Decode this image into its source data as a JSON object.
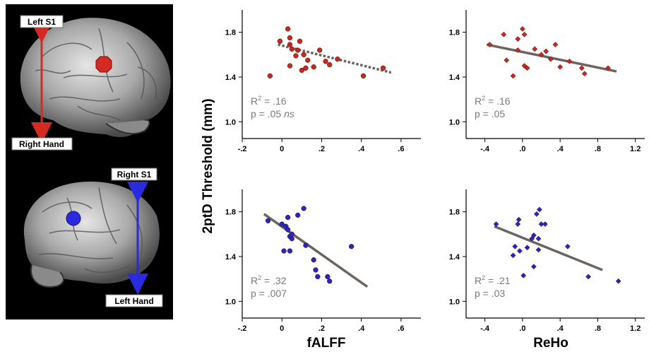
{
  "brain_panel": {
    "left": {
      "top_label": "Left S1",
      "bottom_label": "Right Hand",
      "marker_color": "#d42a22",
      "arrow_color": "#d42a22"
    },
    "right": {
      "top_label": "Right S1",
      "bottom_label": "Left Hand",
      "marker_color": "#2a2ae0",
      "arrow_color": "#2a2ae0"
    }
  },
  "y_axis_title": "2ptD Threshold (mm)",
  "column_titles": {
    "falff": "fALFF",
    "reho": "ReHo"
  },
  "chart_data": [
    {
      "id": "falff-red",
      "type": "scatter",
      "row": 0,
      "col": 0,
      "marker": "circle",
      "color": "#c8281e",
      "fit_style": "dotted",
      "xlim": [
        -0.2,
        0.7
      ],
      "ylim": [
        0.85,
        2.0
      ],
      "xticks": [
        -0.2,
        0,
        0.2,
        0.4,
        0.6
      ],
      "xtick_labels": [
        "-.2",
        "0",
        ".2",
        ".4",
        ".6"
      ],
      "yticks": [
        1.0,
        1.4,
        1.8
      ],
      "ytick_labels": [
        "1.0",
        "1.4",
        "1.8"
      ],
      "points": [
        [
          -0.06,
          1.41
        ],
        [
          -0.01,
          1.72
        ],
        [
          0.03,
          1.83
        ],
        [
          0.04,
          1.75
        ],
        [
          0.04,
          1.69
        ],
        [
          0.05,
          1.65
        ],
        [
          0.04,
          1.5
        ],
        [
          0.07,
          1.59
        ],
        [
          0.08,
          1.64
        ],
        [
          0.09,
          1.72
        ],
        [
          0.1,
          1.46
        ],
        [
          0.11,
          1.6
        ],
        [
          0.12,
          1.48
        ],
        [
          0.13,
          1.55
        ],
        [
          0.16,
          1.49
        ],
        [
          0.19,
          1.64
        ],
        [
          0.22,
          1.54
        ],
        [
          0.24,
          1.51
        ],
        [
          0.28,
          1.56
        ],
        [
          0.41,
          1.41
        ],
        [
          0.51,
          1.48
        ]
      ],
      "fit": {
        "x": [
          -0.02,
          0.55
        ],
        "y": [
          1.69,
          1.44
        ]
      },
      "stats": {
        "r2_label": "R",
        "r2_sup": "2",
        "r2_value": " = .16",
        "p_label": "p  = .05 ",
        "p_extra": "ns"
      }
    },
    {
      "id": "reho-red",
      "type": "scatter",
      "row": 0,
      "col": 1,
      "marker": "diamond",
      "color": "#c8281e",
      "fit_style": "solid",
      "xlim": [
        -0.6,
        1.3
      ],
      "ylim": [
        0.85,
        2.0
      ],
      "xticks": [
        -0.4,
        0,
        0.4,
        0.8,
        1.2
      ],
      "xtick_labels": [
        "-.4",
        ".0",
        ".4",
        ".8",
        "1.2"
      ],
      "yticks": [
        1.0,
        1.4,
        1.8
      ],
      "ytick_labels": [
        "1.0",
        "1.4",
        "1.8"
      ],
      "points": [
        [
          -0.35,
          1.69
        ],
        [
          -0.2,
          1.78
        ],
        [
          -0.17,
          1.55
        ],
        [
          -0.1,
          1.41
        ],
        [
          -0.05,
          1.64
        ],
        [
          -0.05,
          1.74
        ],
        [
          0.0,
          1.83
        ],
        [
          0.02,
          1.78
        ],
        [
          0.02,
          1.5
        ],
        [
          0.05,
          1.48
        ],
        [
          0.13,
          1.65
        ],
        [
          0.2,
          1.6
        ],
        [
          0.25,
          1.63
        ],
        [
          0.3,
          1.56
        ],
        [
          0.35,
          1.69
        ],
        [
          0.4,
          1.49
        ],
        [
          0.5,
          1.54
        ],
        [
          0.63,
          1.48
        ],
        [
          0.66,
          1.43
        ],
        [
          0.91,
          1.48
        ]
      ],
      "fit": {
        "x": [
          -0.38,
          1.0
        ],
        "y": [
          1.69,
          1.45
        ]
      },
      "stats": {
        "r2_label": "R",
        "r2_sup": "2",
        "r2_value": " = .16",
        "p_label": "p  = .05",
        "p_extra": ""
      }
    },
    {
      "id": "falff-blue",
      "type": "scatter",
      "row": 1,
      "col": 0,
      "marker": "circle",
      "color": "#2626c8",
      "fit_style": "solid",
      "xlim": [
        -0.2,
        0.7
      ],
      "ylim": [
        0.85,
        2.0
      ],
      "xticks": [
        -0.2,
        0,
        0.2,
        0.4,
        0.6
      ],
      "xtick_labels": [
        "-.2",
        "0",
        ".2",
        ".4",
        ".6"
      ],
      "yticks": [
        1.0,
        1.4,
        1.8
      ],
      "ytick_labels": [
        "1.0",
        "1.4",
        "1.8"
      ],
      "points": [
        [
          -0.07,
          1.72
        ],
        [
          0.0,
          1.69
        ],
        [
          0.01,
          1.45
        ],
        [
          0.02,
          1.67
        ],
        [
          0.03,
          1.64
        ],
        [
          0.03,
          1.75
        ],
        [
          0.04,
          1.58
        ],
        [
          0.04,
          1.45
        ],
        [
          0.05,
          1.6
        ],
        [
          0.05,
          1.56
        ],
        [
          0.08,
          1.77
        ],
        [
          0.11,
          1.83
        ],
        [
          0.12,
          1.5
        ],
        [
          0.16,
          1.37
        ],
        [
          0.17,
          1.28
        ],
        [
          0.18,
          1.22
        ],
        [
          0.23,
          1.22
        ],
        [
          0.24,
          1.18
        ],
        [
          0.35,
          1.49
        ]
      ],
      "fit": {
        "x": [
          -0.09,
          0.43
        ],
        "y": [
          1.78,
          1.13
        ]
      },
      "stats": {
        "r2_label": "R",
        "r2_sup": "2",
        "r2_value": " = .32",
        "p_label": "p  = .007",
        "p_extra": ""
      }
    },
    {
      "id": "reho-blue",
      "type": "scatter",
      "row": 1,
      "col": 1,
      "marker": "diamond",
      "color": "#2626c8",
      "fit_style": "solid",
      "xlim": [
        -0.6,
        1.3
      ],
      "ylim": [
        0.85,
        2.0
      ],
      "xticks": [
        -0.4,
        0,
        0.4,
        0.8,
        1.2
      ],
      "xtick_labels": [
        "-.4",
        ".0",
        ".4",
        ".8",
        "1.2"
      ],
      "yticks": [
        1.0,
        1.4,
        1.8
      ],
      "ytick_labels": [
        "1.0",
        "1.4",
        "1.8"
      ],
      "points": [
        [
          -0.28,
          1.69
        ],
        [
          -0.1,
          1.41
        ],
        [
          -0.08,
          1.49
        ],
        [
          -0.05,
          1.69
        ],
        [
          -0.04,
          1.73
        ],
        [
          -0.03,
          1.45
        ],
        [
          0.01,
          1.23
        ],
        [
          0.05,
          1.48
        ],
        [
          0.1,
          1.56
        ],
        [
          0.12,
          1.31
        ],
        [
          0.12,
          1.59
        ],
        [
          0.15,
          1.78
        ],
        [
          0.17,
          1.56
        ],
        [
          0.17,
          1.46
        ],
        [
          0.18,
          1.82
        ],
        [
          0.2,
          1.69
        ],
        [
          0.24,
          1.69
        ],
        [
          0.48,
          1.49
        ],
        [
          0.7,
          1.22
        ],
        [
          1.02,
          1.18
        ]
      ],
      "fit": {
        "x": [
          -0.3,
          0.85
        ],
        "y": [
          1.67,
          1.28
        ]
      },
      "stats": {
        "r2_label": "R",
        "r2_sup": "2",
        "r2_value": " = .21",
        "p_label": "p  = .03",
        "p_extra": ""
      }
    }
  ]
}
